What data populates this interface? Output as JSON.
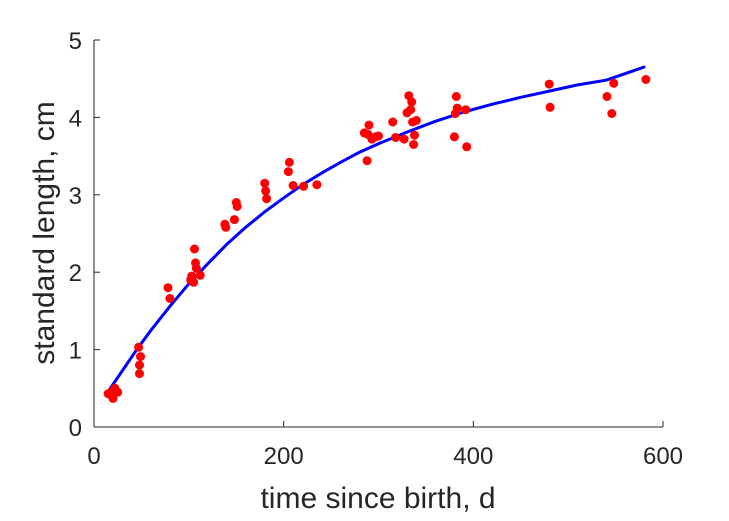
{
  "chart_data": {
    "type": "scatter",
    "title": "",
    "xlabel": "time since birth, d",
    "ylabel": "standard length, cm",
    "xlim": [
      0,
      600
    ],
    "ylim": [
      0,
      5
    ],
    "xticks": [
      0,
      200,
      400,
      600
    ],
    "yticks": [
      0,
      1,
      2,
      3,
      4,
      5
    ],
    "grid": false,
    "legend": "none",
    "series": [
      {
        "kind": "points",
        "color": "#ff0000",
        "x": [
          15,
          18,
          20,
          22,
          25,
          47,
          48,
          48,
          49,
          78,
          80,
          102,
          103,
          105,
          106,
          107,
          108,
          112,
          138,
          139,
          148,
          150,
          151,
          180,
          181,
          182,
          205,
          206,
          210,
          221,
          235,
          285,
          288,
          289,
          290,
          293,
          297,
          300,
          315,
          318,
          327,
          330,
          332,
          334,
          335,
          336,
          337,
          338,
          340,
          380,
          381,
          382,
          383,
          392,
          393,
          480,
          481,
          541,
          546,
          548,
          582
        ],
        "y": [
          0.43,
          0.45,
          0.37,
          0.5,
          0.45,
          1.03,
          0.8,
          0.69,
          0.91,
          1.8,
          1.66,
          1.9,
          1.95,
          1.87,
          2.3,
          2.12,
          2.05,
          1.96,
          2.62,
          2.58,
          2.68,
          2.9,
          2.85,
          3.15,
          3.05,
          2.95,
          3.3,
          3.42,
          3.12,
          3.11,
          3.13,
          3.8,
          3.44,
          3.78,
          3.9,
          3.72,
          3.75,
          3.76,
          3.94,
          3.74,
          3.72,
          4.06,
          4.28,
          4.1,
          4.2,
          3.94,
          3.65,
          3.77,
          3.96,
          3.75,
          4.05,
          4.27,
          4.12,
          4.1,
          3.62,
          4.43,
          4.13,
          4.27,
          4.05,
          4.44,
          4.49
        ]
      },
      {
        "kind": "curve",
        "color": "#0000ff",
        "x": [
          15,
          30,
          45,
          60,
          80,
          100,
          120,
          140,
          160,
          180,
          200,
          220,
          240,
          260,
          280,
          300,
          330,
          360,
          390,
          420,
          450,
          480,
          510,
          540,
          580
        ],
        "y": [
          0.46,
          0.73,
          1.0,
          1.25,
          1.56,
          1.85,
          2.11,
          2.36,
          2.58,
          2.78,
          2.96,
          3.13,
          3.28,
          3.42,
          3.55,
          3.66,
          3.81,
          3.95,
          4.07,
          4.17,
          4.26,
          4.34,
          4.42,
          4.48,
          4.65
        ]
      }
    ]
  }
}
